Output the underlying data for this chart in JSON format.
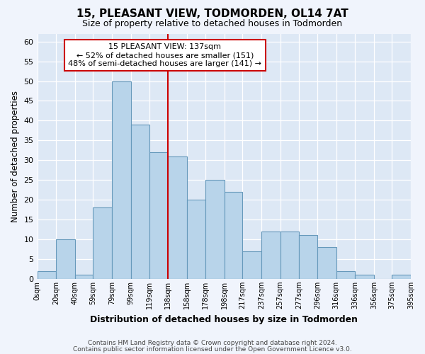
{
  "title": "15, PLEASANT VIEW, TODMORDEN, OL14 7AT",
  "subtitle": "Size of property relative to detached houses in Todmorden",
  "xlabel": "Distribution of detached houses by size in Todmorden",
  "ylabel": "Number of detached properties",
  "bar_left_edges": [
    0,
    20,
    40,
    59,
    79,
    99,
    119,
    138,
    158,
    178,
    198,
    217,
    237,
    257,
    277,
    296,
    316,
    336,
    356,
    375
  ],
  "bar_widths": [
    20,
    20,
    19,
    20,
    20,
    20,
    19,
    20,
    20,
    20,
    19,
    20,
    20,
    20,
    19,
    20,
    20,
    20,
    19,
    20
  ],
  "bar_heights": [
    2,
    10,
    1,
    18,
    50,
    39,
    32,
    31,
    20,
    25,
    22,
    7,
    12,
    12,
    11,
    8,
    2,
    1,
    0,
    1
  ],
  "bar_color": "#b8d4ea",
  "bar_edgecolor": "#6699bb",
  "vline_x": 138,
  "vline_color": "#cc0000",
  "xlim": [
    0,
    395
  ],
  "ylim": [
    0,
    62
  ],
  "yticks": [
    0,
    5,
    10,
    15,
    20,
    25,
    30,
    35,
    40,
    45,
    50,
    55,
    60
  ],
  "xtick_labels": [
    "0sqm",
    "20sqm",
    "40sqm",
    "59sqm",
    "79sqm",
    "99sqm",
    "119sqm",
    "138sqm",
    "158sqm",
    "178sqm",
    "198sqm",
    "217sqm",
    "237sqm",
    "257sqm",
    "277sqm",
    "296sqm",
    "316sqm",
    "336sqm",
    "356sqm",
    "375sqm",
    "395sqm"
  ],
  "xtick_positions": [
    0,
    20,
    40,
    59,
    79,
    99,
    119,
    138,
    158,
    178,
    198,
    217,
    237,
    257,
    277,
    296,
    316,
    336,
    356,
    375,
    395
  ],
  "annotation_title": "15 PLEASANT VIEW: 137sqm",
  "annotation_line1": "← 52% of detached houses are smaller (151)",
  "annotation_line2": "48% of semi-detached houses are larger (141) →",
  "footnote1": "Contains HM Land Registry data © Crown copyright and database right 2024.",
  "footnote2": "Contains public sector information licensed under the Open Government Licence v3.0.",
  "bg_color": "#f0f4fc",
  "plot_bg_color": "#dde8f5"
}
